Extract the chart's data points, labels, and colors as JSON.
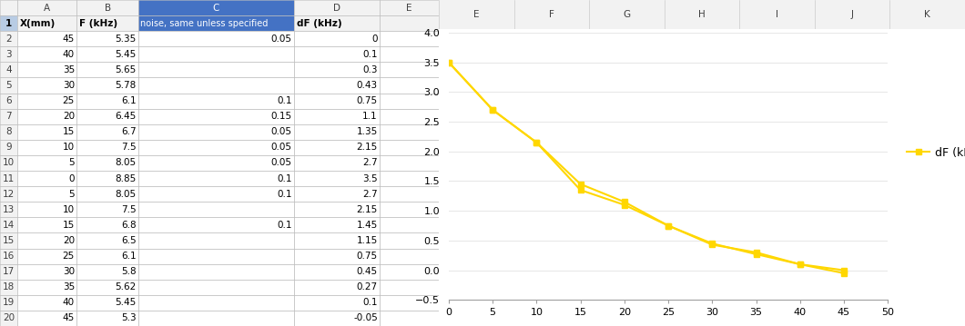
{
  "table_data": {
    "col_headers": [
      "",
      "A",
      "B",
      "C",
      "D",
      "E"
    ],
    "row_headers": [
      "1",
      "2",
      "3",
      "4",
      "5",
      "6",
      "7",
      "8",
      "9",
      "10",
      "11",
      "12",
      "13",
      "14",
      "15",
      "16",
      "17",
      "18",
      "19",
      "20"
    ],
    "col_A_header": "X(mm)",
    "col_B_header": "F (kHz)",
    "col_C_header": "noise, same unless specified",
    "col_D_header": "dF (kHz)",
    "rows": [
      [
        45,
        5.35,
        0.05,
        0
      ],
      [
        40,
        5.45,
        "",
        0.1
      ],
      [
        35,
        5.65,
        "",
        0.3
      ],
      [
        30,
        5.78,
        "",
        0.43
      ],
      [
        25,
        6.1,
        0.1,
        0.75
      ],
      [
        20,
        6.45,
        0.15,
        1.1
      ],
      [
        15,
        6.7,
        0.05,
        1.35
      ],
      [
        10,
        7.5,
        0.05,
        2.15
      ],
      [
        5,
        8.05,
        0.05,
        2.7
      ],
      [
        0,
        8.85,
        0.1,
        3.5
      ],
      [
        5,
        8.05,
        0.1,
        2.7
      ],
      [
        10,
        7.5,
        "",
        2.15
      ],
      [
        15,
        6.8,
        0.1,
        1.45
      ],
      [
        20,
        6.5,
        "",
        1.15
      ],
      [
        25,
        6.1,
        "",
        0.75
      ],
      [
        30,
        5.8,
        "",
        0.45
      ],
      [
        35,
        5.62,
        "",
        0.27
      ],
      [
        40,
        5.45,
        "",
        0.1
      ],
      [
        45,
        5.3,
        "",
        -0.05
      ]
    ]
  },
  "outward_x": [
    0,
    5,
    10,
    15,
    20,
    25,
    30,
    35,
    40,
    45
  ],
  "outward_dF": [
    3.5,
    2.7,
    2.15,
    1.35,
    1.1,
    0.75,
    0.43,
    0.3,
    0.1,
    0.0
  ],
  "return_x": [
    0,
    5,
    10,
    15,
    20,
    25,
    30,
    35,
    40,
    45
  ],
  "return_dF": [
    3.5,
    2.7,
    2.15,
    1.45,
    1.15,
    0.75,
    0.45,
    0.27,
    0.1,
    -0.05
  ],
  "line_color": "#FFD700",
  "marker": "s",
  "marker_size": 4,
  "line_width": 1.5,
  "legend_label": "dF (kHz)",
  "xlim": [
    0,
    50
  ],
  "ylim": [
    -0.5,
    4
  ],
  "yticks": [
    -0.5,
    0,
    0.5,
    1,
    1.5,
    2,
    2.5,
    3,
    3.5,
    4
  ],
  "xticks": [
    0,
    5,
    10,
    15,
    20,
    25,
    30,
    35,
    40,
    45,
    50
  ],
  "grid_color": "#E8E8E8",
  "background_color": "#FFFFFF",
  "excel_bg": "#FFFFFF",
  "header_bg": "#F2F2F2",
  "col_C_bg": "#4472C4",
  "col_C_text": "#FFFFFF",
  "row1_bg": "#F2F2F2",
  "cell_border": "#C0C0C0",
  "row_num_bg": "#F2F2F2",
  "selected_col_bg": "#4472C4",
  "col_letter_bg": "#F2F2F2",
  "col_letter_text": "#404040",
  "row_num_text": "#404040",
  "table_text_color": "#000000",
  "table_fontsize": 7.5
}
